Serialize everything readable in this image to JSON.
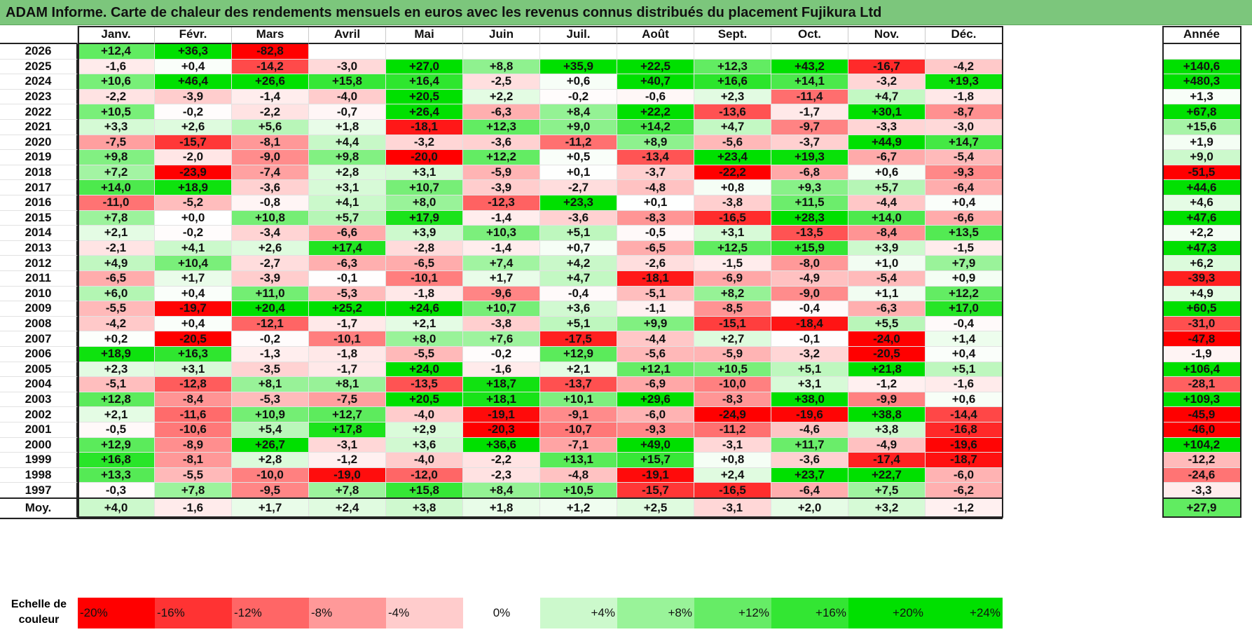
{
  "title": "ADAM Informe. Carte de chaleur des rendements mensuels en euros avec les revenus connus distribués du placement Fujikura Ltd",
  "chart_data": {
    "type": "heatmap",
    "title": "ADAM Informe. Carte de chaleur des rendements mensuels en euros avec les revenus connus distribués du placement Fujikura Ltd",
    "columns": [
      "Janv.",
      "Févr.",
      "Mars",
      "Avril",
      "Mai",
      "Juin",
      "Juil.",
      "Août",
      "Sept.",
      "Oct.",
      "Nov.",
      "Déc."
    ],
    "year_column_label": "Année",
    "rows": [
      {
        "year": "2026",
        "values": [
          "+12,4",
          "+36,3",
          "-82,8",
          "",
          "",
          "",
          "",
          "",
          "",
          "",
          "",
          ""
        ],
        "annual": ""
      },
      {
        "year": "2025",
        "values": [
          "-1,6",
          "+0,4",
          "-14,2",
          "-3,0",
          "+27,0",
          "+8,8",
          "+35,9",
          "+22,5",
          "+12,3",
          "+43,2",
          "-16,7",
          "-4,2"
        ],
        "annual": "+140,6"
      },
      {
        "year": "2024",
        "values": [
          "+10,6",
          "+46,4",
          "+26,6",
          "+15,8",
          "+16,4",
          "-2,5",
          "+0,6",
          "+40,7",
          "+16,6",
          "+14,1",
          "-3,2",
          "+19,3"
        ],
        "annual": "+480,3"
      },
      {
        "year": "2023",
        "values": [
          "-2,2",
          "-3,9",
          "-1,4",
          "-4,0",
          "+20,5",
          "+2,2",
          "-0,2",
          "-0,6",
          "+2,3",
          "-11,4",
          "+4,7",
          "-1,8"
        ],
        "annual": "+1,3"
      },
      {
        "year": "2022",
        "values": [
          "+10,5",
          "-0,2",
          "-2,2",
          "-0,7",
          "+26,4",
          "-6,3",
          "+8,4",
          "+22,2",
          "-13,6",
          "-1,7",
          "+30,1",
          "-8,7"
        ],
        "annual": "+67,8"
      },
      {
        "year": "2021",
        "values": [
          "+3,3",
          "+2,6",
          "+5,6",
          "+1,8",
          "-18,1",
          "+12,3",
          "+9,0",
          "+14,2",
          "+4,7",
          "-9,7",
          "-3,3",
          "-3,0"
        ],
        "annual": "+15,6"
      },
      {
        "year": "2020",
        "values": [
          "-7,5",
          "-15,7",
          "-8,1",
          "+4,4",
          "-3,2",
          "-3,6",
          "-11,2",
          "+8,9",
          "-5,6",
          "-3,7",
          "+44,9",
          "+14,7"
        ],
        "annual": "+1,9"
      },
      {
        "year": "2019",
        "values": [
          "+9,8",
          "-2,0",
          "-9,0",
          "+9,8",
          "-20,0",
          "+12,2",
          "+0,5",
          "-13,4",
          "+23,4",
          "+19,3",
          "-6,7",
          "-5,4"
        ],
        "annual": "+9,0"
      },
      {
        "year": "2018",
        "values": [
          "+7,2",
          "-23,9",
          "-7,4",
          "+2,8",
          "+3,1",
          "-5,9",
          "+0,1",
          "-3,7",
          "-22,2",
          "-6,8",
          "+0,6",
          "-9,3"
        ],
        "annual": "-51,5"
      },
      {
        "year": "2017",
        "values": [
          "+14,0",
          "+18,9",
          "-3,6",
          "+3,1",
          "+10,7",
          "-3,9",
          "-2,7",
          "-4,8",
          "+0,8",
          "+9,3",
          "+5,7",
          "-6,4"
        ],
        "annual": "+44,6"
      },
      {
        "year": "2016",
        "values": [
          "-11,0",
          "-5,2",
          "-0,8",
          "+4,1",
          "+8,0",
          "-12,3",
          "+23,3",
          "+0,1",
          "-3,8",
          "+11,5",
          "-4,4",
          "+0,4"
        ],
        "annual": "+4,6"
      },
      {
        "year": "2015",
        "values": [
          "+7,8",
          "+0,0",
          "+10,8",
          "+5,7",
          "+17,9",
          "-1,4",
          "-3,6",
          "-8,3",
          "-16,5",
          "+28,3",
          "+14,0",
          "-6,6"
        ],
        "annual": "+47,6"
      },
      {
        "year": "2014",
        "values": [
          "+2,1",
          "-0,2",
          "-3,4",
          "-6,6",
          "+3,9",
          "+10,3",
          "+5,1",
          "-0,5",
          "+3,1",
          "-13,5",
          "-8,4",
          "+13,5"
        ],
        "annual": "+2,2"
      },
      {
        "year": "2013",
        "values": [
          "-2,1",
          "+4,1",
          "+2,6",
          "+17,4",
          "-2,8",
          "-1,4",
          "+0,7",
          "-6,5",
          "+12,5",
          "+15,9",
          "+3,9",
          "-1,5"
        ],
        "annual": "+47,3"
      },
      {
        "year": "2012",
        "values": [
          "+4,9",
          "+10,4",
          "-2,7",
          "-6,3",
          "-6,5",
          "+7,4",
          "+4,2",
          "-2,6",
          "-1,5",
          "-8,0",
          "+1,0",
          "+7,9"
        ],
        "annual": "+6,2"
      },
      {
        "year": "2011",
        "values": [
          "-6,5",
          "+1,7",
          "-3,9",
          "-0,1",
          "-10,1",
          "+1,7",
          "+4,7",
          "-18,1",
          "-6,9",
          "-4,9",
          "-5,4",
          "+0,9"
        ],
        "annual": "-39,3"
      },
      {
        "year": "2010",
        "values": [
          "+6,0",
          "+0,4",
          "+11,0",
          "-5,3",
          "-1,8",
          "-9,6",
          "-0,4",
          "-5,1",
          "+8,2",
          "-9,0",
          "+1,1",
          "+12,2"
        ],
        "annual": "+4,9"
      },
      {
        "year": "2009",
        "values": [
          "-5,5",
          "-19,7",
          "+20,4",
          "+25,2",
          "+24,6",
          "+10,7",
          "+3,6",
          "-1,1",
          "-8,5",
          "-0,4",
          "-6,3",
          "+17,0"
        ],
        "annual": "+60,5"
      },
      {
        "year": "2008",
        "values": [
          "-4,2",
          "+0,4",
          "-12,1",
          "-1,7",
          "+2,1",
          "-3,8",
          "+5,1",
          "+9,9",
          "-15,1",
          "-18,4",
          "+5,5",
          "-0,4"
        ],
        "annual": "-31,0"
      },
      {
        "year": "2007",
        "values": [
          "+0,2",
          "-20,5",
          "-0,2",
          "-10,1",
          "+8,0",
          "+7,6",
          "-17,5",
          "-4,4",
          "+2,7",
          "-0,1",
          "-24,0",
          "+1,4"
        ],
        "annual": "-47,8"
      },
      {
        "year": "2006",
        "values": [
          "+18,9",
          "+16,3",
          "-1,3",
          "-1,8",
          "-5,5",
          "-0,2",
          "+12,9",
          "-5,6",
          "-5,9",
          "-3,2",
          "-20,5",
          "+0,4"
        ],
        "annual": "-1,9"
      },
      {
        "year": "2005",
        "values": [
          "+2,3",
          "+3,1",
          "-3,5",
          "-1,7",
          "+24,0",
          "-1,6",
          "+2,1",
          "+12,1",
          "+10,5",
          "+5,1",
          "+21,8",
          "+5,1"
        ],
        "annual": "+106,4"
      },
      {
        "year": "2004",
        "values": [
          "-5,1",
          "-12,8",
          "+8,1",
          "+8,1",
          "-13,5",
          "+18,7",
          "-13,7",
          "-6,9",
          "-10,0",
          "+3,1",
          "-1,2",
          "-1,6"
        ],
        "annual": "-28,1"
      },
      {
        "year": "2003",
        "values": [
          "+12,8",
          "-8,4",
          "-5,3",
          "-7,5",
          "+20,5",
          "+18,1",
          "+10,1",
          "+29,6",
          "-8,3",
          "+38,0",
          "-9,9",
          "+0,6"
        ],
        "annual": "+109,3"
      },
      {
        "year": "2002",
        "values": [
          "+2,1",
          "-11,6",
          "+10,9",
          "+12,7",
          "-4,0",
          "-19,1",
          "-9,1",
          "-6,0",
          "-24,9",
          "-19,6",
          "+38,8",
          "-14,4"
        ],
        "annual": "-45,9"
      },
      {
        "year": "2001",
        "values": [
          "-0,5",
          "-10,6",
          "+5,4",
          "+17,8",
          "+2,9",
          "-20,3",
          "-10,7",
          "-9,3",
          "-11,2",
          "-4,6",
          "+3,8",
          "-16,8"
        ],
        "annual": "-46,0"
      },
      {
        "year": "2000",
        "values": [
          "+12,9",
          "-8,9",
          "+26,7",
          "-3,1",
          "+3,6",
          "+36,6",
          "-7,1",
          "+49,0",
          "-3,1",
          "+11,7",
          "-4,9",
          "-19,6"
        ],
        "annual": "+104,2"
      },
      {
        "year": "1999",
        "values": [
          "+16,8",
          "-8,1",
          "+2,8",
          "-1,2",
          "-4,0",
          "-2,2",
          "+13,1",
          "+15,7",
          "+0,8",
          "-3,6",
          "-17,4",
          "-18,7"
        ],
        "annual": "-12,2"
      },
      {
        "year": "1998",
        "values": [
          "+13,3",
          "-5,5",
          "-10,0",
          "-19,0",
          "-12,0",
          "-2,3",
          "-4,8",
          "-19,1",
          "+2,4",
          "+23,7",
          "+22,7",
          "-6,0"
        ],
        "annual": "-24,6"
      },
      {
        "year": "1997",
        "values": [
          "-0,3",
          "+7,8",
          "-9,5",
          "+7,8",
          "+15,8",
          "+8,4",
          "+10,5",
          "-15,7",
          "-16,5",
          "-6,4",
          "+7,5",
          "-6,2"
        ],
        "annual": "-3,3"
      }
    ],
    "average": {
      "label": "Moy.",
      "values": [
        "+4,0",
        "-1,6",
        "+1,7",
        "+2,4",
        "+3,8",
        "+1,8",
        "+1,2",
        "+2,5",
        "-3,1",
        "+2,0",
        "+3,2",
        "-1,2"
      ],
      "annual": "+27,9"
    },
    "color_scale": {
      "label_line1": "Echelle de",
      "label_line2": "couleur",
      "stops": [
        {
          "label": "-20%",
          "value": -20
        },
        {
          "label": "-16%",
          "value": -16
        },
        {
          "label": "-12%",
          "value": -12
        },
        {
          "label": "-8%",
          "value": -8
        },
        {
          "label": "-4%",
          "value": -4
        },
        {
          "label": "0%",
          "value": 0
        },
        {
          "label": "+4%",
          "value": 4
        },
        {
          "label": "+8%",
          "value": 8
        },
        {
          "label": "+12%",
          "value": 12
        },
        {
          "label": "+16%",
          "value": 16
        },
        {
          "label": "+20%",
          "value": 20
        },
        {
          "label": "+24%",
          "value": 24
        }
      ]
    },
    "colors": {
      "negative_max": "#ff0000",
      "neutral": "#ffffff",
      "positive_max": "#00e000"
    }
  }
}
